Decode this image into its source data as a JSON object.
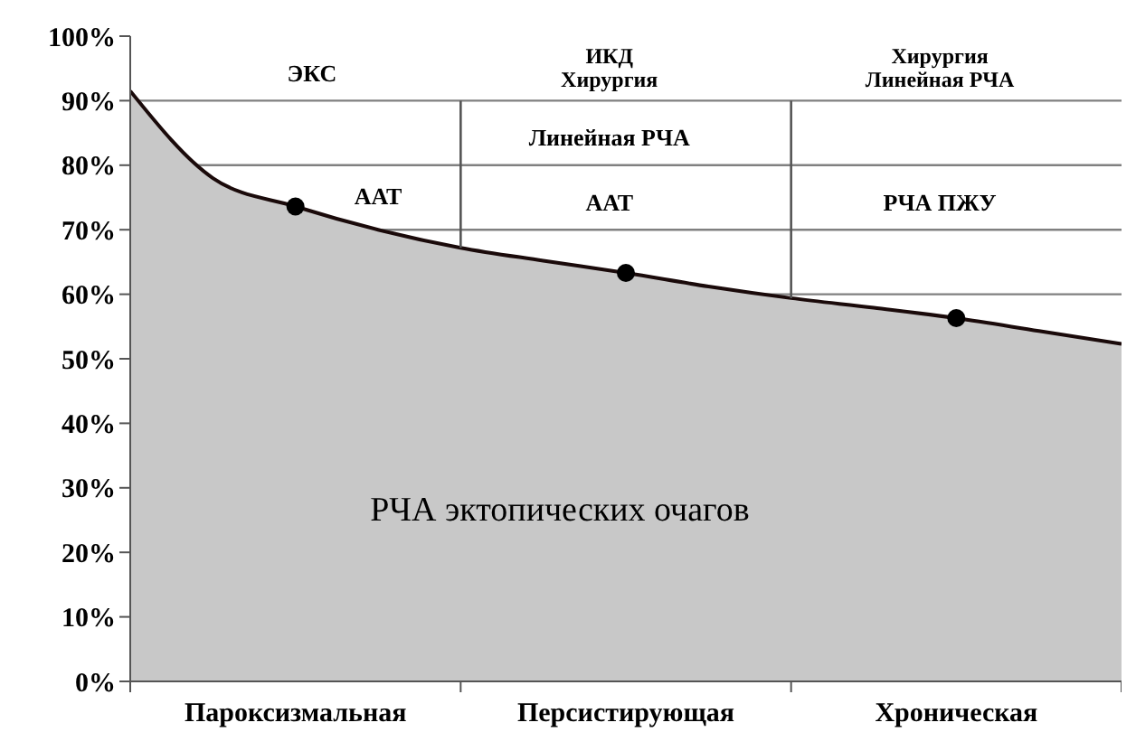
{
  "chart_data": {
    "type": "area",
    "categories": [
      null,
      null,
      "Пароксизмальная",
      null,
      null,
      null,
      "Персистирующая",
      null,
      null,
      null,
      "Хроническая",
      null,
      null
    ],
    "series": [
      {
        "color": "#c8c8c8",
        "values": [
          91.5,
          78,
          73.6,
          70,
          67.2,
          65.2,
          63.3,
          61.2,
          59.4,
          57.9,
          56.3,
          54.3,
          52.3
        ]
      },
      {
        "type": "scatter",
        "color": "#000000",
        "x": [
          "Пароксизмальная",
          "Персистирующая",
          "Хроническая"
        ],
        "values": [
          73.6,
          63.3,
          56.3
        ]
      }
    ],
    "ylim": [
      0,
      100
    ],
    "yticks": [
      {
        "value": 0,
        "label": "0%"
      },
      {
        "value": 10,
        "label": "10%"
      },
      {
        "value": 20,
        "label": "20%"
      },
      {
        "value": 30,
        "label": "30%"
      },
      {
        "value": 40,
        "label": "40%"
      },
      {
        "value": 50,
        "label": "50%"
      },
      {
        "value": 60,
        "label": "60%"
      },
      {
        "value": 70,
        "label": "70%"
      },
      {
        "value": 80,
        "label": "80%"
      },
      {
        "value": 90,
        "label": "90%"
      },
      {
        "value": 100,
        "label": "100%"
      }
    ],
    "grid": "y",
    "annotations": [
      "ЭКС",
      "ИКД\nХирургия",
      "Хирургия\nЛинейная РЧА",
      "Линейная РЧА",
      "ААТ",
      "ААТ",
      "РЧА ПЖУ",
      "РЧА эктопических очагов"
    ]
  }
}
